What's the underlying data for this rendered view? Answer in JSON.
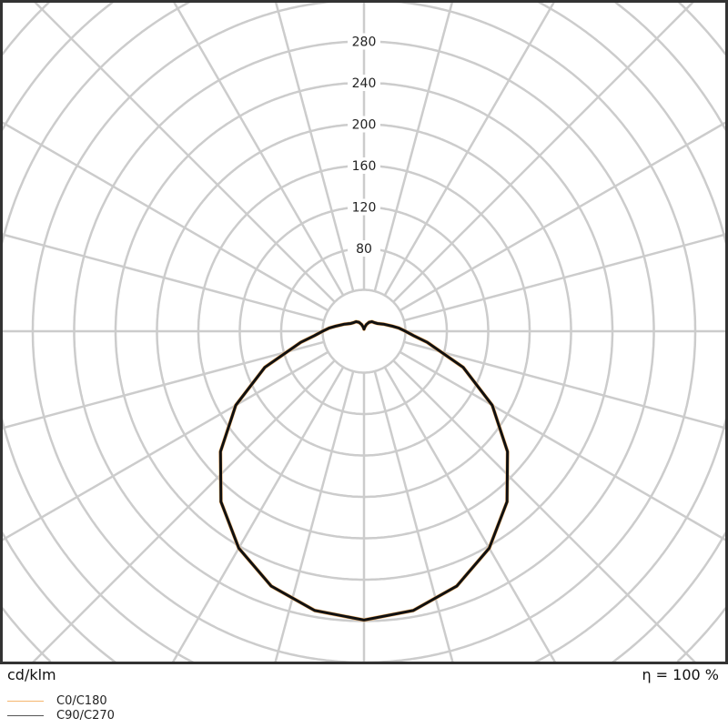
{
  "chart_data": {
    "type": "polar",
    "unit_label": "cd/klm",
    "efficiency_label": "η = 100 %",
    "radial_ticks": [
      80,
      120,
      160,
      200,
      240,
      280
    ],
    "radial_rings": [
      40,
      80,
      120,
      160,
      200,
      240,
      280,
      320,
      360,
      400,
      440,
      480,
      520
    ],
    "angle_step_deg": 15,
    "grid": true,
    "legend_placement": "bottom-left",
    "gamma_deg": [
      0,
      10,
      20,
      30,
      40,
      50,
      60,
      70,
      80,
      85,
      90,
      95,
      100,
      110,
      120,
      130,
      140,
      150,
      160,
      170,
      180
    ],
    "series": [
      {
        "name": "C0/C180",
        "color": "#f5b56e",
        "values": [
          279,
          274,
          262,
          242,
          215,
          181,
          143,
          102,
          62,
          48,
          40,
          34,
          28,
          20,
          15,
          13,
          12,
          10,
          7,
          4,
          2
        ]
      },
      {
        "name": "C90/C270",
        "color": "#555555",
        "values": [
          279,
          274,
          262,
          242,
          215,
          181,
          143,
          102,
          62,
          48,
          40,
          34,
          28,
          20,
          15,
          13,
          12,
          10,
          7,
          4,
          2
        ]
      }
    ],
    "curve_color": "#111111",
    "grid_color": "#cccccc"
  }
}
